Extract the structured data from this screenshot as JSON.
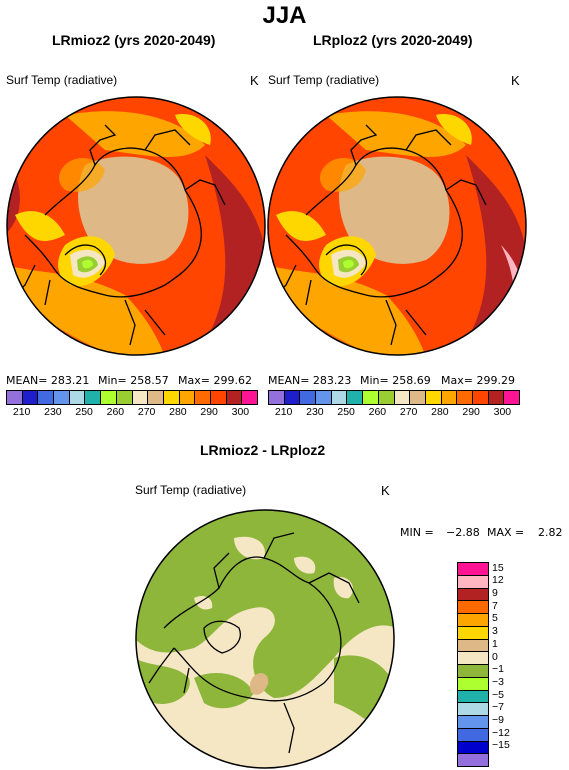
{
  "figure": {
    "title": "JJA",
    "difference_title": "LRmioz2 - LRploz2"
  },
  "panels": [
    {
      "title": "LRmioz2 (yrs 2020-2049)",
      "variable": "Surf Temp (radiative)",
      "unit": "K",
      "mean": "MEAN= 283.21",
      "min": "Min= 258.57",
      "max": "Max= 299.62"
    },
    {
      "title": "LRploz2 (yrs 2020-2049)",
      "variable": "Surf Temp (radiative)",
      "unit": "K",
      "mean": "MEAN= 283.23",
      "min": "Min= 258.69",
      "max": "Max= 299.29"
    }
  ],
  "abs_colorbar": {
    "colors": [
      "#9370db",
      "#1e1ecd",
      "#4169e1",
      "#6495ed",
      "#add8e6",
      "#20b2aa",
      "#adff2f",
      "#9acd32",
      "#f5e6c4",
      "#deb887",
      "#ffd700",
      "#ffa500",
      "#ff6a00",
      "#ff4500",
      "#b22222",
      "#ff1493"
    ],
    "labels": [
      "210",
      "230",
      "250",
      "260",
      "270",
      "280",
      "290",
      "300"
    ]
  },
  "diff_panel": {
    "variable": "Surf Temp (radiative)",
    "unit": "K",
    "min_label": "MIN =",
    "min_value": "−2.88",
    "max_label": "MAX =",
    "max_value": "2.82"
  },
  "diff_colorbar": {
    "colors": [
      "#ff1493",
      "#ffb6c1",
      "#b22222",
      "#ff6a00",
      "#ffa500",
      "#ffd700",
      "#deb887",
      "#f5e6c4",
      "#8db63b",
      "#adff2f",
      "#20b2aa",
      "#add8e6",
      "#6495ed",
      "#4169e1",
      "#0000cd",
      "#9370db"
    ],
    "labels": [
      "15",
      "12",
      "9",
      "7",
      "5",
      "3",
      "1",
      "0",
      "−1",
      "−3",
      "−5",
      "−7",
      "−9",
      "−12",
      "−15"
    ]
  }
}
